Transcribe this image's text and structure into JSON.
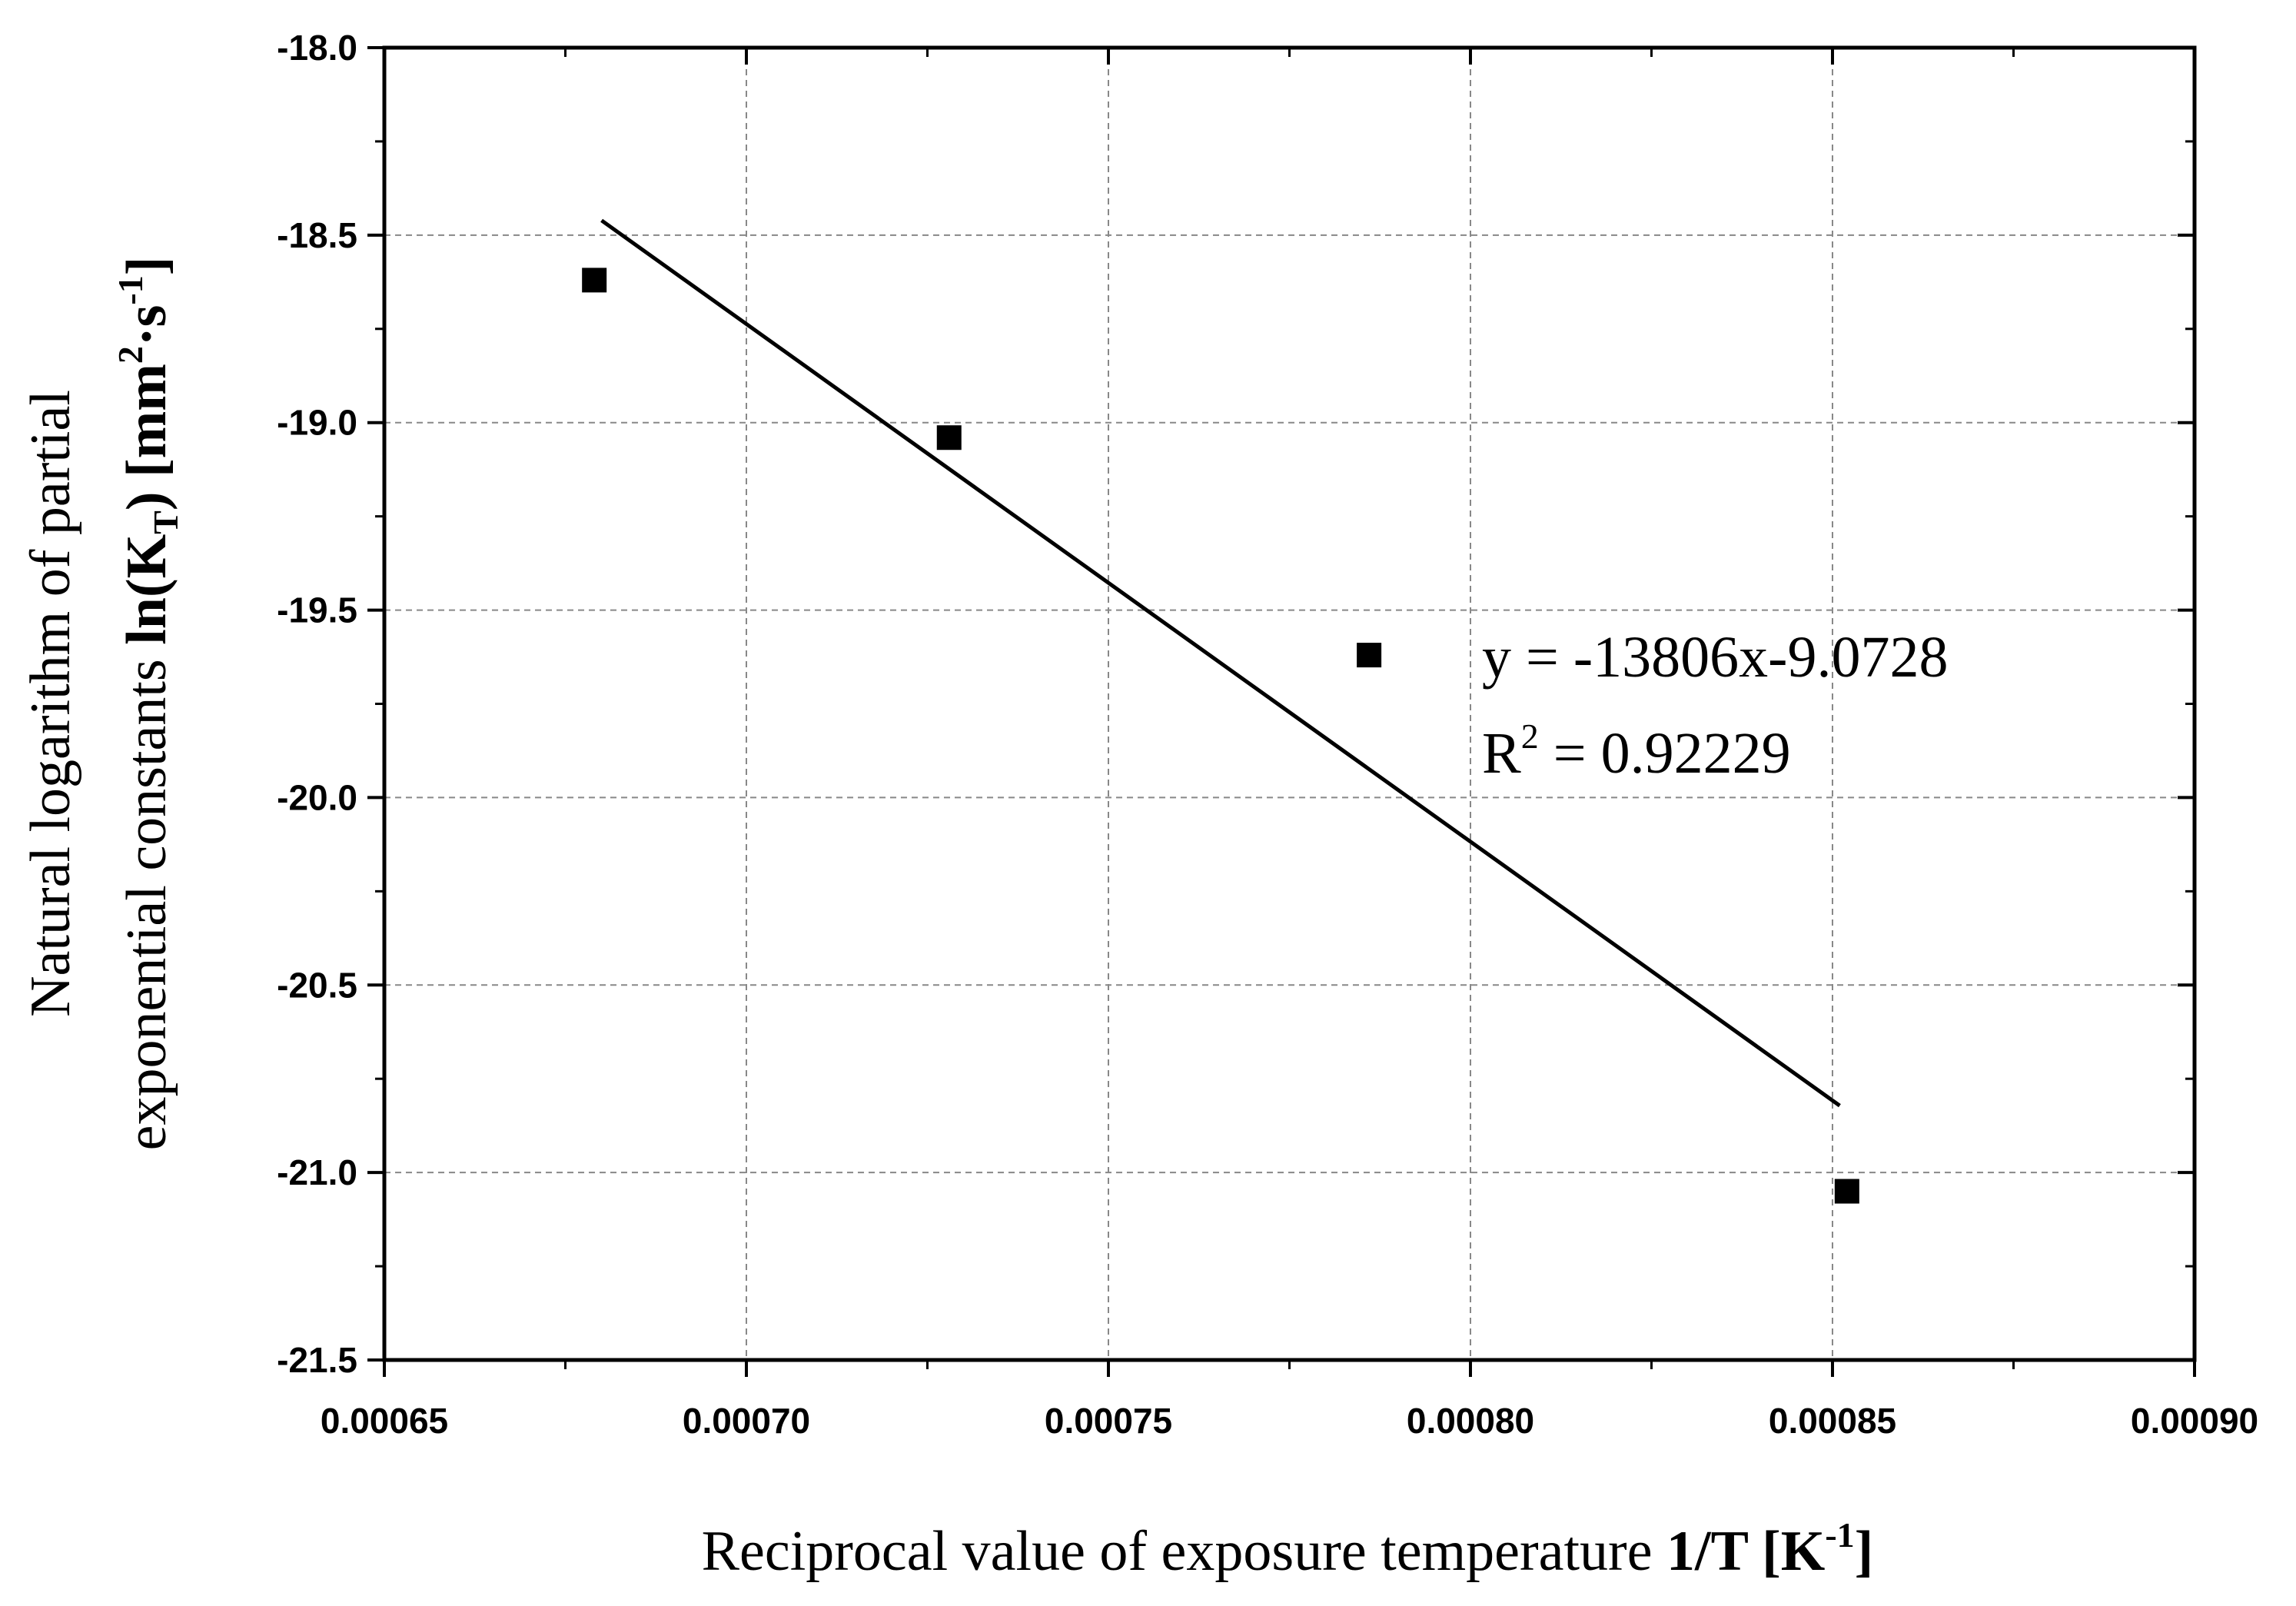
{
  "chart_data": {
    "type": "scatter",
    "title": "",
    "xlabel": {
      "main": "Reciprocal value of exposure temperature ",
      "bold": "1/T [K",
      "sup": "-1",
      "close": "]"
    },
    "ylabel": {
      "line1": "Natural logarithm of partial",
      "line2_main": "exponential constants ",
      "line2_bold_a": "ln(K",
      "line2_sub": "T",
      "line2_bold_b": ") [mm",
      "line2_sup1": "2",
      "line2_bold_c": "·s",
      "line2_sup2": "-1",
      "line2_bold_d": "]"
    },
    "xlim": [
      0.00065,
      0.0009
    ],
    "ylim": [
      -21.5,
      -18.0
    ],
    "x_ticks": [
      "0.00065",
      "0.00070",
      "0.00075",
      "0.00080",
      "0.00085",
      "0.00090"
    ],
    "x_tick_values": [
      0.00065,
      0.0007,
      0.00075,
      0.0008,
      0.00085,
      0.0009
    ],
    "y_ticks": [
      "-18.0",
      "-18.5",
      "-19.0",
      "-19.5",
      "-20.0",
      "-20.5",
      "-21.0",
      "-21.5"
    ],
    "y_tick_values": [
      -18.0,
      -18.5,
      -19.0,
      -19.5,
      -20.0,
      -20.5,
      -21.0,
      -21.5
    ],
    "grid": true,
    "series": [
      {
        "name": "data",
        "marker": "square",
        "x": [
          0.000679,
          0.000728,
          0.000786,
          0.000852
        ],
        "y": [
          -18.62,
          -19.04,
          -19.62,
          -21.05
        ]
      }
    ],
    "fit": {
      "slope": -13806,
      "intercept": -9.0728,
      "x_range": [
        0.00068,
        0.000851
      ]
    },
    "annotations": {
      "equation": "y = -13806x-9.0728",
      "r2_label": "R",
      "r2_sup": "2",
      "r2_value": " = 0.92229"
    }
  }
}
